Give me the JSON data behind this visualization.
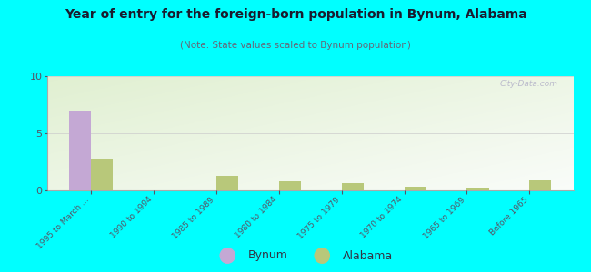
{
  "title": "Year of entry for the foreign-born population in Bynum, Alabama",
  "subtitle": "(Note: State values scaled to Bynum population)",
  "categories": [
    "1995 to March ...",
    "1990 to 1994",
    "1985 to 1989",
    "1980 to 1984",
    "1975 to 1979",
    "1970 to 1974",
    "1965 to 1969",
    "Before 1965"
  ],
  "bynum_values": [
    7,
    0,
    0,
    0,
    0,
    0,
    0,
    0
  ],
  "alabama_values": [
    2.8,
    0,
    1.3,
    0.8,
    0.6,
    0.35,
    0.2,
    0.9
  ],
  "bynum_color": "#c4a8d4",
  "alabama_color": "#b8c87a",
  "figure_bg": "#00ffff",
  "plot_bg_color": "#eef5e0",
  "ylim": [
    0,
    10
  ],
  "yticks": [
    0,
    5,
    10
  ],
  "bar_width": 0.35,
  "watermark": "City-Data.com",
  "legend_bynum": "Bynum",
  "legend_alabama": "Alabama",
  "title_color": "#1a1a2e",
  "subtitle_color": "#666677",
  "tick_color": "#555566"
}
